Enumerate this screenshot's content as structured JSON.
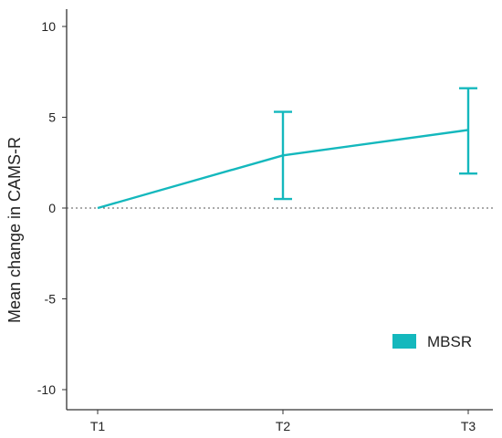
{
  "chart_data": {
    "type": "line",
    "categories": [
      "T1",
      "T2",
      "T3"
    ],
    "series": [
      {
        "name": "MBSR",
        "color": "#14b8bd",
        "values": [
          0,
          2.9,
          4.3
        ],
        "error_low": [
          0,
          0.5,
          1.9
        ],
        "error_high": [
          0,
          5.3,
          6.6
        ]
      }
    ],
    "xlabel": "",
    "ylabel": "Mean change in CAMS-R",
    "ylim": [
      -11,
      11
    ],
    "yticks": [
      10,
      5,
      0,
      -5,
      -10
    ],
    "reference_line": 0,
    "grid": false,
    "legend_position": "bottom-right"
  }
}
